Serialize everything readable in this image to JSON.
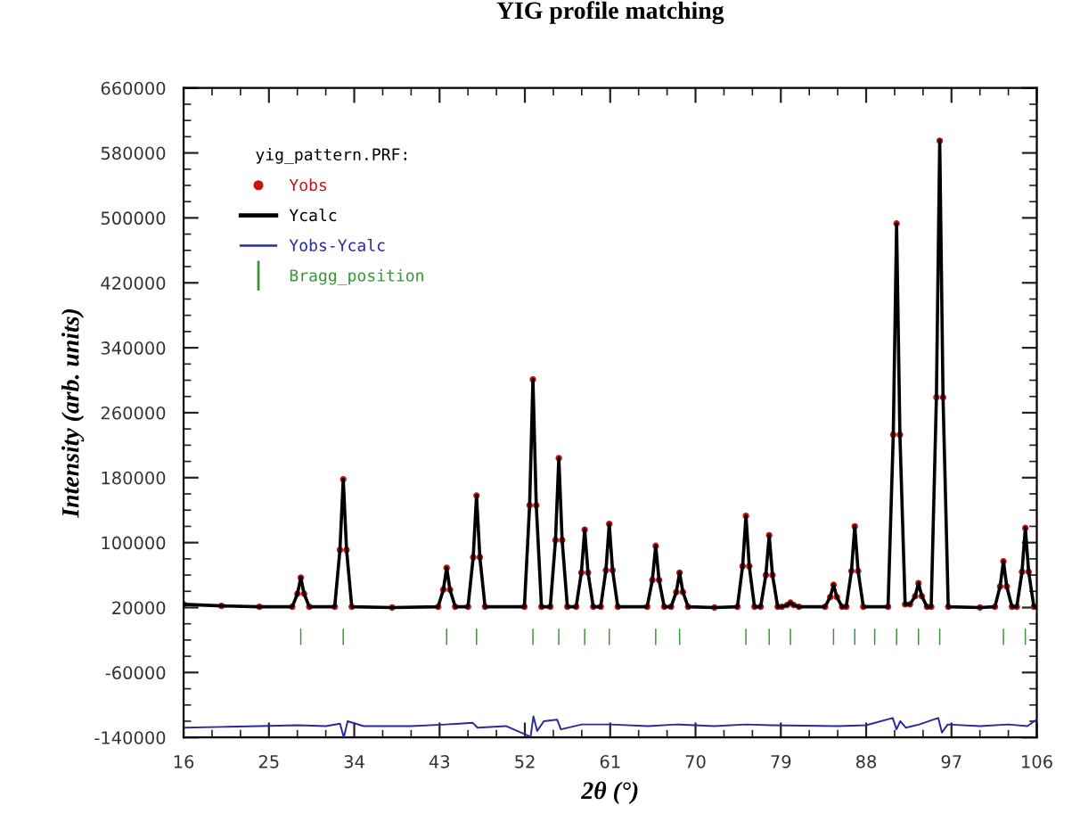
{
  "chart_data": {
    "type": "line",
    "title": "YIG profile matching",
    "xlabel": "2θ (°)",
    "ylabel": "Intensity (arb. units)",
    "legend_title": "yig_pattern.PRF:",
    "legend": "top left",
    "grid": false,
    "xlim": [
      16,
      106
    ],
    "xticks": [
      16,
      25,
      34,
      43,
      52,
      61,
      70,
      79,
      88,
      97,
      106
    ],
    "ylim": [
      -140000,
      660000
    ],
    "yticks": [
      -140000,
      -60000,
      20000,
      100000,
      180000,
      260000,
      340000,
      420000,
      500000,
      580000,
      660000
    ],
    "series": [
      {
        "name": "Yobs",
        "type": "scatter",
        "marker": "circle",
        "color": "#cc1111",
        "x": [
          16,
          20,
          24,
          27.46,
          28.01,
          28.36,
          28.71,
          29.26,
          31.94,
          32.49,
          32.84,
          33.19,
          33.74,
          38,
          42.85,
          43.4,
          43.75,
          44.1,
          44.65,
          46.0,
          46.55,
          46.9,
          47.25,
          47.8,
          51.95,
          52.5,
          52.85,
          53.2,
          53.75,
          54.68,
          55.23,
          55.58,
          55.93,
          56.48,
          57.41,
          57.96,
          58.31,
          58.66,
          59.21,
          60.0,
          60.55,
          60.9,
          61.25,
          61.8,
          64.9,
          65.45,
          65.8,
          66.15,
          66.7,
          67.42,
          67.97,
          68.32,
          68.67,
          69.22,
          72,
          74.42,
          74.97,
          75.32,
          75.67,
          76.22,
          76.87,
          77.42,
          77.77,
          78.12,
          78.67,
          79.11,
          79.66,
          80.01,
          80.36,
          80.91,
          83.66,
          84.21,
          84.56,
          84.91,
          85.46,
          85.9,
          86.45,
          86.8,
          87.15,
          87.7,
          90.31,
          90.86,
          91.21,
          91.56,
          92.11,
          92.62,
          93.17,
          93.52,
          93.87,
          94.42,
          94.86,
          95.41,
          95.76,
          96.11,
          96.66,
          100,
          101.58,
          102.13,
          102.48,
          102.83,
          103.38,
          103.89,
          104.44,
          104.79,
          105.14,
          105.69
        ],
        "values": [
          24000,
          22000,
          21000,
          21000,
          37000,
          57000,
          37000,
          21000,
          21000,
          91000,
          178000,
          91000,
          21000,
          20000,
          21000,
          42000,
          69000,
          42000,
          21000,
          21000,
          82000,
          158000,
          82000,
          21000,
          21000,
          146000,
          301000,
          146000,
          21000,
          21000,
          103000,
          204000,
          103000,
          21000,
          21000,
          63000,
          116000,
          63000,
          21000,
          21000,
          66000,
          123000,
          66000,
          21000,
          21000,
          54000,
          96000,
          54000,
          21000,
          21000,
          39000,
          63000,
          39000,
          21000,
          20000,
          21000,
          71000,
          133000,
          71000,
          21000,
          21000,
          60000,
          109000,
          60000,
          21000,
          21000,
          23000,
          26000,
          23000,
          21000,
          21000,
          33000,
          48000,
          33000,
          21000,
          21000,
          65000,
          120000,
          65000,
          21000,
          21000,
          233000,
          493000,
          233000,
          24000,
          24000,
          34000,
          50000,
          34000,
          21000,
          21000,
          279000,
          595000,
          279000,
          21000,
          20000,
          21000,
          46000,
          77000,
          46000,
          21000,
          21000,
          64000,
          118000,
          64000,
          21000
        ]
      },
      {
        "name": "Ycalc",
        "color": "#000000",
        "x": [
          16,
          20,
          24,
          27.46,
          28.01,
          28.36,
          28.71,
          29.26,
          31.94,
          32.49,
          32.84,
          33.19,
          33.74,
          38,
          42.85,
          43.4,
          43.75,
          44.1,
          44.65,
          46.0,
          46.55,
          46.9,
          47.25,
          47.8,
          51.95,
          52.5,
          52.85,
          53.2,
          53.75,
          54.68,
          55.23,
          55.58,
          55.93,
          56.48,
          57.41,
          57.96,
          58.31,
          58.66,
          59.21,
          60.0,
          60.55,
          60.9,
          61.25,
          61.8,
          64.9,
          65.45,
          65.8,
          66.15,
          66.7,
          67.42,
          67.97,
          68.32,
          68.67,
          69.22,
          72,
          74.42,
          74.97,
          75.32,
          75.67,
          76.22,
          76.87,
          77.42,
          77.77,
          78.12,
          78.67,
          79.11,
          79.66,
          80.01,
          80.36,
          80.91,
          83.66,
          84.21,
          84.56,
          84.91,
          85.46,
          85.9,
          86.45,
          86.8,
          87.15,
          87.7,
          90.31,
          90.86,
          91.21,
          91.56,
          92.11,
          92.62,
          93.17,
          93.52,
          93.87,
          94.42,
          94.86,
          95.41,
          95.76,
          96.11,
          96.66,
          100,
          101.58,
          102.13,
          102.48,
          102.83,
          103.38,
          103.89,
          104.44,
          104.79,
          105.14,
          105.69,
          106
        ],
        "values": [
          24000,
          22000,
          21000,
          21000,
          37000,
          57000,
          37000,
          21000,
          21000,
          91000,
          178000,
          91000,
          21000,
          20000,
          21000,
          42000,
          69000,
          42000,
          21000,
          21000,
          82000,
          158000,
          82000,
          21000,
          21000,
          146000,
          301000,
          146000,
          21000,
          21000,
          103000,
          204000,
          103000,
          21000,
          21000,
          63000,
          116000,
          63000,
          21000,
          21000,
          66000,
          123000,
          66000,
          21000,
          21000,
          54000,
          96000,
          54000,
          21000,
          21000,
          39000,
          63000,
          39000,
          21000,
          20000,
          21000,
          71000,
          133000,
          71000,
          21000,
          21000,
          60000,
          109000,
          60000,
          21000,
          21000,
          23000,
          26000,
          23000,
          21000,
          21000,
          33000,
          48000,
          33000,
          21000,
          21000,
          65000,
          120000,
          65000,
          21000,
          21000,
          233000,
          493000,
          233000,
          24000,
          24000,
          34000,
          50000,
          34000,
          21000,
          21000,
          279000,
          595000,
          279000,
          21000,
          20000,
          21000,
          46000,
          77000,
          46000,
          21000,
          21000,
          64000,
          118000,
          64000,
          21000,
          20000
        ]
      },
      {
        "name": "Yobs-Ycalc",
        "type": "line",
        "color": "#2a2a9a",
        "x": [
          16,
          20,
          24,
          28,
          31,
          32.5,
          32.9,
          33.3,
          35,
          40,
          43.7,
          46.5,
          47,
          50,
          52.6,
          52.9,
          53.3,
          54,
          55.4,
          55.8,
          58,
          61,
          65,
          68,
          72,
          75.3,
          78,
          85,
          88,
          90.8,
          91.2,
          91.6,
          92.2,
          93.6,
          95.6,
          96,
          96.6,
          100,
          103,
          105,
          106
        ],
        "values": [
          -128000,
          -127000,
          -126000,
          -125000,
          -126000,
          -123000,
          -140000,
          -120000,
          -126000,
          -126000,
          -124000,
          -122000,
          -128000,
          -126000,
          -139000,
          -114000,
          -132000,
          -120000,
          -118000,
          -130000,
          -124000,
          -124000,
          -126000,
          -124000,
          -126000,
          -124000,
          -125000,
          -126000,
          -125000,
          -116000,
          -130000,
          -120000,
          -128000,
          -124000,
          -116000,
          -134000,
          -124000,
          -126000,
          -124000,
          -126000,
          -118000
        ]
      },
      {
        "name": "Bragg_position",
        "type": "bar",
        "color": "#3a943a",
        "base": [
          -26000,
          -26000,
          -26000,
          -26000,
          -26000,
          -26000,
          -26000,
          -26000,
          -26000,
          -26000,
          -26000,
          -26000,
          -26000,
          -26000,
          -26000,
          -26000,
          -26000,
          -26000,
          -26000,
          -26000,
          -26000
        ],
        "x": [
          28.36,
          32.84,
          43.75,
          46.9,
          52.85,
          55.58,
          58.31,
          60.9,
          65.8,
          68.32,
          75.32,
          77.77,
          80.01,
          84.56,
          86.8,
          88.9,
          91.21,
          93.52,
          95.76,
          102.48,
          104.79
        ],
        "values": [
          20000,
          20000,
          20000,
          20000,
          20000,
          20000,
          20000,
          20000,
          20000,
          20000,
          20000,
          20000,
          20000,
          20000,
          20000,
          20000,
          20000,
          20000,
          20000,
          20000,
          20000
        ]
      }
    ]
  }
}
